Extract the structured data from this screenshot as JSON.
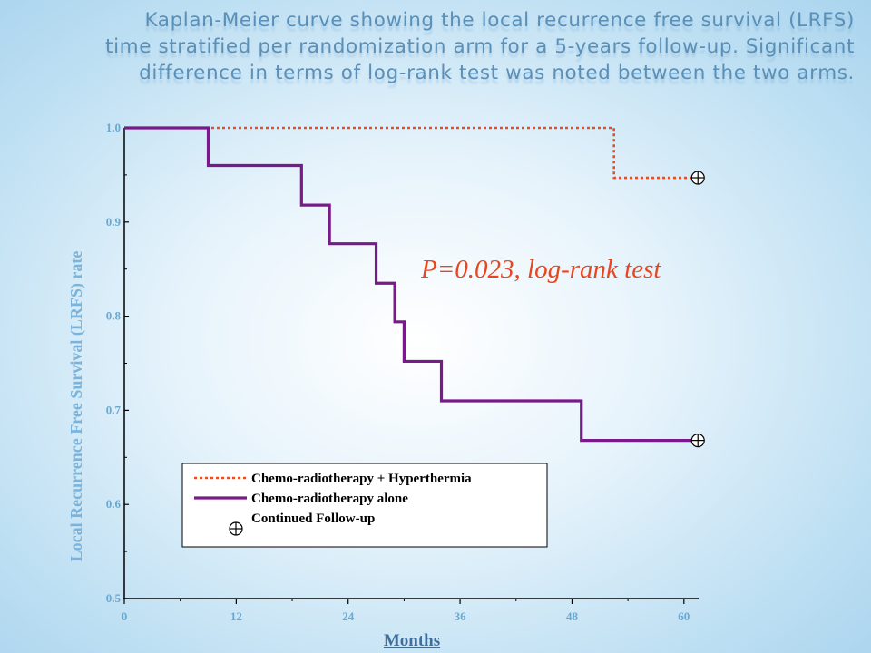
{
  "slide": {
    "title_lines": [
      "Kaplan-Meier curve showing the local recurrence free survival (LRFS)",
      "time stratified per randomization arm for a 5-years follow-up. Significant",
      "difference in terms of log-rank test was noted between the two arms."
    ]
  },
  "chart_data": {
    "type": "line",
    "xlabel": "Months",
    "ylabel": "Local Recurrence Free Survival (LRFS) rate",
    "xlim": [
      0,
      63
    ],
    "ylim": [
      0.5,
      1.0
    ],
    "x_ticks": [
      0,
      12,
      24,
      36,
      48,
      60
    ],
    "x_tick_labels": [
      "0",
      "12",
      "24",
      "36",
      "48",
      "60"
    ],
    "y_ticks": [
      0.5,
      0.6,
      0.7,
      0.8,
      0.9,
      1.0
    ],
    "y_tick_labels": [
      "0.5",
      "0.6",
      "0.7",
      "0.8",
      "0.9",
      "1.0"
    ],
    "annotation": "P=0.023, log-rank test",
    "legend_position": "bottom-left",
    "series": [
      {
        "name": "Chemo-radiotherapy + Hyperthermia",
        "style": "dotted",
        "color": "#f04a1e",
        "steps": [
          [
            0,
            1.0
          ],
          [
            52.5,
            0.947
          ],
          [
            61.5,
            0.947
          ]
        ],
        "censored": [
          [
            61.5,
            0.947
          ]
        ]
      },
      {
        "name": "Chemo-radiotherapy alone",
        "style": "solid",
        "color": "#7a1a8a",
        "steps": [
          [
            0,
            1.0
          ],
          [
            9,
            0.96
          ],
          [
            19,
            0.918
          ],
          [
            22,
            0.877
          ],
          [
            27,
            0.835
          ],
          [
            29,
            0.794
          ],
          [
            30,
            0.752
          ],
          [
            34,
            0.71
          ],
          [
            49,
            0.668
          ],
          [
            61.5,
            0.668
          ]
        ],
        "censored": [
          [
            61.5,
            0.668
          ]
        ]
      }
    ],
    "legend": [
      {
        "label": "Chemo-radiotherapy + Hyperthermia",
        "kind": "dotted-line",
        "color": "#f04a1e"
      },
      {
        "label": "Chemo-radiotherapy alone",
        "kind": "solid-line",
        "color": "#7a1a8a"
      },
      {
        "label": "Continued Follow-up",
        "kind": "censor-mark",
        "color": "#000000"
      }
    ]
  }
}
